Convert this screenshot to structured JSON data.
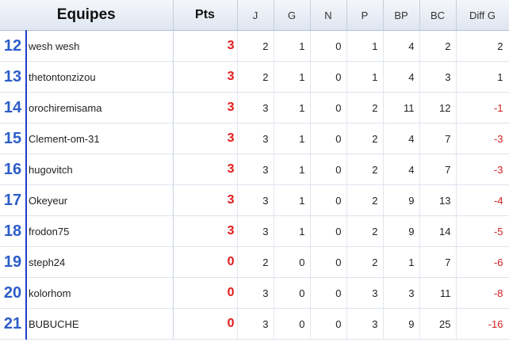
{
  "header": {
    "teams": "Equipes",
    "pts": "Pts",
    "j": "J",
    "g": "G",
    "n": "N",
    "p": "P",
    "bp": "BP",
    "bc": "BC",
    "diff": "Diff G"
  },
  "colors": {
    "rank": "#2c5dc8",
    "points": "#e21b1b",
    "negative_diff": "#d42020"
  },
  "rows": [
    {
      "rank": "12",
      "team": "wesh wesh",
      "pts": "3",
      "j": "2",
      "g": "1",
      "n": "0",
      "p": "1",
      "bp": "4",
      "bc": "2",
      "diff": "2"
    },
    {
      "rank": "13",
      "team": "thetontonzizou",
      "pts": "3",
      "j": "2",
      "g": "1",
      "n": "0",
      "p": "1",
      "bp": "4",
      "bc": "3",
      "diff": "1"
    },
    {
      "rank": "14",
      "team": "orochiremisama",
      "pts": "3",
      "j": "3",
      "g": "1",
      "n": "0",
      "p": "2",
      "bp": "11",
      "bc": "12",
      "diff": "-1"
    },
    {
      "rank": "15",
      "team": "Clement-om-31",
      "pts": "3",
      "j": "3",
      "g": "1",
      "n": "0",
      "p": "2",
      "bp": "4",
      "bc": "7",
      "diff": "-3"
    },
    {
      "rank": "16",
      "team": "hugovitch",
      "pts": "3",
      "j": "3",
      "g": "1",
      "n": "0",
      "p": "2",
      "bp": "4",
      "bc": "7",
      "diff": "-3"
    },
    {
      "rank": "17",
      "team": "Okeyeur",
      "pts": "3",
      "j": "3",
      "g": "1",
      "n": "0",
      "p": "2",
      "bp": "9",
      "bc": "13",
      "diff": "-4"
    },
    {
      "rank": "18",
      "team": "frodon75",
      "pts": "3",
      "j": "3",
      "g": "1",
      "n": "0",
      "p": "2",
      "bp": "9",
      "bc": "14",
      "diff": "-5"
    },
    {
      "rank": "19",
      "team": "steph24",
      "pts": "0",
      "j": "2",
      "g": "0",
      "n": "0",
      "p": "2",
      "bp": "1",
      "bc": "7",
      "diff": "-6"
    },
    {
      "rank": "20",
      "team": "kolorhom",
      "pts": "0",
      "j": "3",
      "g": "0",
      "n": "0",
      "p": "3",
      "bp": "3",
      "bc": "11",
      "diff": "-8"
    },
    {
      "rank": "21",
      "team": "BUBUCHE",
      "pts": "0",
      "j": "3",
      "g": "0",
      "n": "0",
      "p": "3",
      "bp": "9",
      "bc": "25",
      "diff": "-16"
    }
  ]
}
